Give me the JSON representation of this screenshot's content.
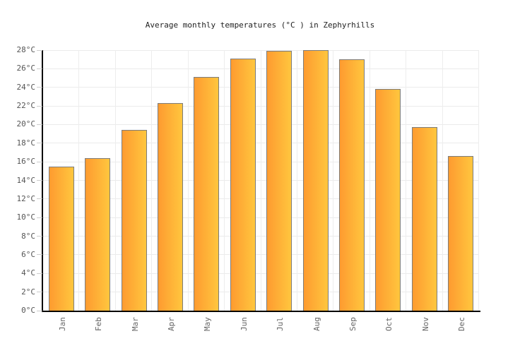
{
  "chart_data": {
    "type": "bar",
    "title": "Average monthly temperatures (°C ) in Zephyrhills",
    "categories": [
      "Jan",
      "Feb",
      "Mar",
      "Apr",
      "May",
      "Jun",
      "Jul",
      "Aug",
      "Sep",
      "Oct",
      "Nov",
      "Dec"
    ],
    "values": [
      15.5,
      16.4,
      19.4,
      22.3,
      25.1,
      27.1,
      27.9,
      28.0,
      27.0,
      23.8,
      19.7,
      16.6
    ],
    "xlabel": "",
    "ylabel": "",
    "ylim": [
      0,
      28
    ],
    "ytick_step": 2,
    "ytick_suffix": "°C",
    "grid": true,
    "legend_position": "none",
    "colors": {
      "bar_gradient_left": "#fe9b30",
      "bar_gradient_right": "#ffc63e",
      "bar_border": "#7c7c7c",
      "axis_line": "#000000",
      "gridline": "#ebebeb",
      "tick": "#cccccc",
      "label_text": "#555555",
      "title_text": "#222222"
    }
  }
}
